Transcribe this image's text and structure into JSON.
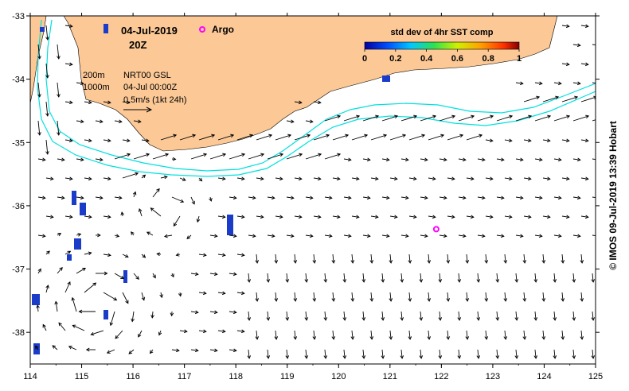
{
  "header": {
    "date": "04-Jul-2019",
    "time": "20Z",
    "argo_label": "Argo",
    "argo_color": "#ff00ff"
  },
  "legend": {
    "contour_200": "200m",
    "contour_1000": "1000m",
    "product": "NRT00 GSL",
    "product_time": "04-Jul 00:00Z",
    "vector_scale": "0.5m/s (1kt 24h)"
  },
  "colorbar": {
    "title": "std dev of 4hr SST comp",
    "ticks": [
      "0",
      "0.2",
      "0.4",
      "0.6",
      "0.8",
      "1"
    ]
  },
  "axes": {
    "x_ticks": [
      "114",
      "115",
      "116",
      "117",
      "118",
      "119",
      "120",
      "121",
      "122",
      "123",
      "124",
      "125"
    ],
    "y_ticks": [
      "-33",
      "-34",
      "-35",
      "-36",
      "-37",
      "-38"
    ],
    "lon_range": [
      114,
      125
    ],
    "lat_range": [
      -38.5,
      -33
    ]
  },
  "credit": "© IMOS 09-Jul-2019 13:39 Hobart",
  "colors": {
    "land": "#fbc896",
    "bathymetry_contour": "#00e0e0",
    "sst_patch": "#1a3cc8"
  },
  "argo_float": {
    "lon": 121.9,
    "lat": -36.37
  }
}
